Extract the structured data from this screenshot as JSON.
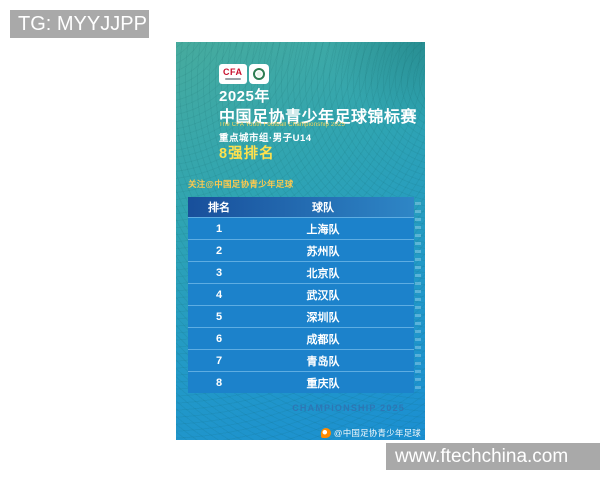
{
  "watermarks": {
    "tg_label": "TG: MYYJJPP",
    "site_url": "www.ftechchina.com"
  },
  "poster": {
    "logo_text": "CFA",
    "year": "2025年",
    "title": "中国足协青少年足球锦标赛",
    "title_en": "The CFA Youth Football Championship 2025",
    "group_label": "重点城市组·男子U14",
    "section_title": "8强排名",
    "follow_note": "关注@中国足协青少年足球",
    "footer_text": "CHAMPIONSHIP 2025",
    "credit": "@中国足协青少年足球",
    "table": {
      "headers": [
        "排名",
        "球队"
      ],
      "rows": [
        {
          "rank": "1",
          "team": "上海队"
        },
        {
          "rank": "2",
          "team": "苏州队"
        },
        {
          "rank": "3",
          "team": "北京队"
        },
        {
          "rank": "4",
          "team": "武汉队"
        },
        {
          "rank": "5",
          "team": "深圳队"
        },
        {
          "rank": "6",
          "team": "成都队"
        },
        {
          "rank": "7",
          "team": "青岛队"
        },
        {
          "rank": "8",
          "team": "重庆队"
        }
      ]
    },
    "colors": {
      "gradient_top": "#47ab9d",
      "gradient_bottom": "#1b8fd2",
      "table_row_blue": "#1c82cb",
      "table_header_start": "#184f9b",
      "table_header_end": "#2e86c6",
      "accent_yellow": "#ffe14d",
      "follow_orange": "#ffc94d",
      "banner_gray": "#a9a9a9"
    }
  }
}
